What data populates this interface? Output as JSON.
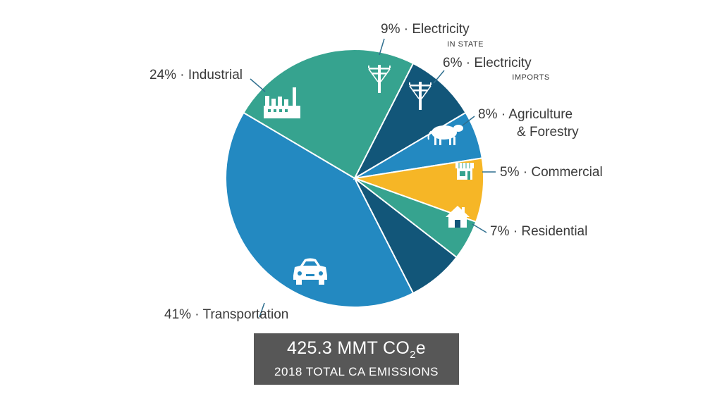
{
  "chart_data": {
    "type": "pie",
    "title": "",
    "slices": [
      {
        "label": "Transportation",
        "value": 41,
        "percent_label": "41% · Transportation",
        "color": "#2389c1",
        "icon": "car-icon"
      },
      {
        "label": "Industrial",
        "value": 24,
        "percent_label": "24% · Industrial",
        "color": "#36a38f",
        "icon": "factory-icon"
      },
      {
        "label": "Electricity",
        "sublabel": "IN STATE",
        "value": 9,
        "percent_label": "9% · Electricity",
        "color": "#125679",
        "icon": "power-pole-icon"
      },
      {
        "label": "Electricity",
        "sublabel": "IMPORTS",
        "value": 6,
        "percent_label": "6% · Electricity",
        "color": "#2389c1",
        "icon": "power-pole-icon"
      },
      {
        "label": "Agriculture & Forestry",
        "value": 8,
        "percent_label": "8% · Agriculture",
        "percent_label_line2": "& Forestry",
        "color": "#f6b626",
        "icon": "cow-icon"
      },
      {
        "label": "Commercial",
        "value": 5,
        "percent_label": "5% · Commercial",
        "color": "#36a38f",
        "icon": "store-icon"
      },
      {
        "label": "Residential",
        "value": 7,
        "percent_label": "7% · Residential",
        "color": "#125679",
        "icon": "house-icon"
      }
    ]
  },
  "total": {
    "value_main": "425.3 MMT CO",
    "value_sub": "2",
    "value_tail": "e",
    "caption": "2018 TOTAL CA EMISSIONS"
  },
  "colors": {
    "label_text": "#3a3a3a",
    "leader_line": "#2f6f8f",
    "total_box": "#575757"
  }
}
